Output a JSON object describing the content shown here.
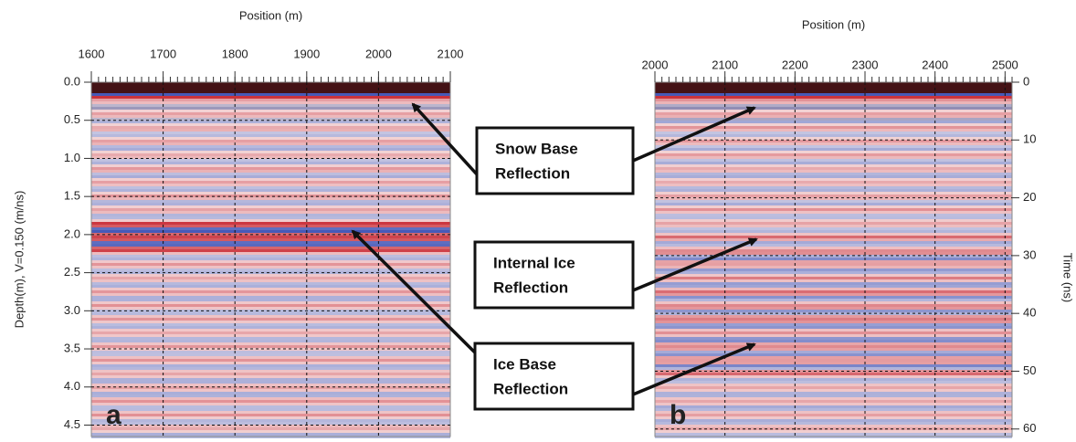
{
  "chart_data": [
    {
      "type": "radargram",
      "title": "Position (m)",
      "ylabel": "Depth(m), V=0.150 (m/ns)",
      "panel": "a",
      "xlim": [
        1600,
        2100
      ],
      "xticks": [
        1600,
        1700,
        1800,
        1900,
        2000,
        2100
      ],
      "ylim": [
        0,
        4.65
      ],
      "yticks": [
        {
          "value": 0,
          "label": "0.0"
        },
        0.5,
        {
          "value": 1,
          "label": "1.0"
        },
        1.5,
        {
          "value": 2,
          "label": "2.0"
        },
        2.5,
        {
          "value": 3,
          "label": "3.0"
        },
        3.5,
        {
          "value": 4,
          "label": "4.0"
        },
        4.5
      ],
      "grid": true,
      "y_axis_side": "left"
    },
    {
      "type": "radargram",
      "title": "Position (m)",
      "ylabel": "Time (ns)",
      "panel": "b",
      "xlim": [
        2000,
        2510
      ],
      "xticks": [
        2000,
        2100,
        2200,
        2300,
        2400,
        2500
      ],
      "ylim": [
        0,
        61.3
      ],
      "yticks": [
        0,
        10,
        20,
        30,
        40,
        50,
        60
      ],
      "grid": true,
      "y_axis_side": "right"
    }
  ],
  "annotations": [
    {
      "lines": [
        "Snow Base",
        "Reflection"
      ]
    },
    {
      "lines": [
        "Internal Ice",
        "Reflection"
      ]
    },
    {
      "lines": [
        "Ice Base",
        "Reflection"
      ]
    }
  ]
}
